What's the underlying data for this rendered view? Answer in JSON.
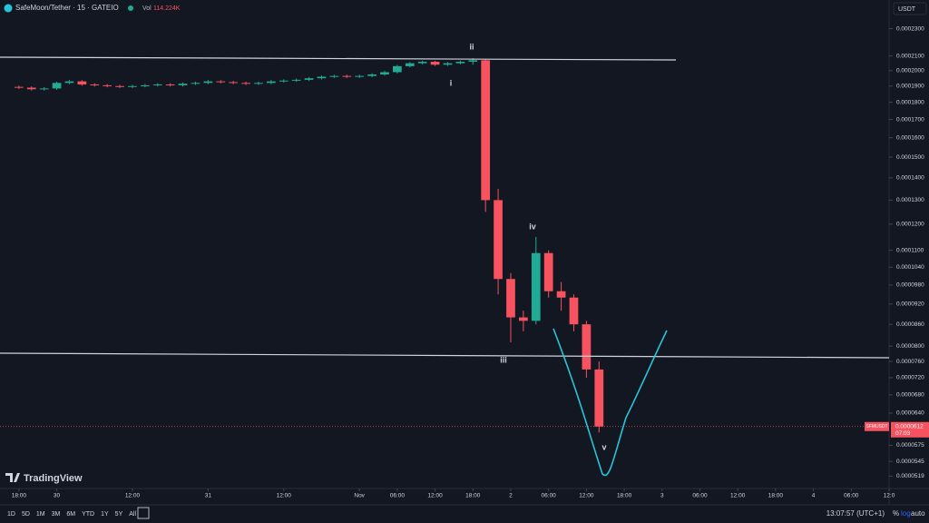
{
  "header": {
    "symbol": "SafeMoon/Tether · 15 · GATEIO",
    "vol_label": "Vol",
    "vol_value": "114.224K",
    "currency": "USDT",
    "logo": "TradingView"
  },
  "toolbar": {
    "ranges": [
      "1D",
      "5D",
      "1M",
      "3M",
      "6M",
      "YTD",
      "1Y",
      "5Y",
      "All"
    ],
    "clock": "13:07:57 (UTC+1)",
    "percent": "%",
    "log": "log",
    "auto": "auto"
  },
  "chart_data": {
    "type": "candlestick",
    "log_scale": true,
    "up_color": "#22ab94",
    "down_color": "#f7525f",
    "x": [
      0,
      2,
      4,
      6,
      8,
      10,
      12,
      14,
      16,
      18,
      20,
      22,
      24,
      26,
      28,
      30,
      32,
      34,
      36,
      38,
      40,
      42,
      44,
      46,
      48,
      50,
      52,
      54,
      56,
      58,
      60,
      62,
      64,
      66,
      68,
      70,
      72,
      74,
      76,
      78,
      80,
      82,
      84,
      86,
      88,
      90,
      92
    ],
    "open": [
      0.0001895,
      0.000189,
      0.000188,
      0.0001885,
      0.000192,
      0.000193,
      0.000191,
      0.0001905,
      0.00019,
      0.0001895,
      0.00019,
      0.0001905,
      0.000191,
      0.0001905,
      0.0001915,
      0.000192,
      0.000193,
      0.0001925,
      0.000192,
      0.0001915,
      0.000192,
      0.000193,
      0.0001935,
      0.000194,
      0.000195,
      0.000196,
      0.0001965,
      0.000196,
      0.0001965,
      0.0001975,
      0.000199,
      0.000203,
      0.000205,
      0.000206,
      0.000204,
      0.000205,
      0.000206,
      0.000207,
      0.00013,
      0.0001,
      8.8e-05,
      8.7e-05,
      0.000109,
      9.6e-05,
      9.4e-05,
      8.6e-05,
      7.4e-05
    ],
    "high": [
      0.0001903,
      0.0001898,
      0.0001893,
      0.0001928,
      0.0001938,
      0.0001938,
      0.0001918,
      0.0001913,
      0.0001908,
      0.0001908,
      0.0001913,
      0.0001918,
      0.0001918,
      0.0001923,
      0.0001928,
      0.0001938,
      0.0001938,
      0.0001933,
      0.0001928,
      0.0001928,
      0.0001938,
      0.0001943,
      0.0001948,
      0.0001958,
      0.0001968,
      0.0001973,
      0.0001973,
      0.0001973,
      0.0001983,
      0.0001998,
      0.0002038,
      0.0002058,
      0.0002068,
      0.0002068,
      0.0002058,
      0.0002068,
      0.0002085,
      0.000208,
      0.000135,
      0.000102,
      9e-05,
      0.000115,
      0.00011,
      9.9e-05,
      9.5e-05,
      8.7e-05,
      7.6e-05
    ],
    "low": [
      0.0001882,
      0.0001872,
      0.0001872,
      0.0001877,
      0.0001912,
      0.0001902,
      0.0001897,
      0.0001892,
      0.0001887,
      0.0001887,
      0.0001892,
      0.0001897,
      0.0001897,
      0.0001897,
      0.0001907,
      0.0001912,
      0.0001917,
      0.0001912,
      0.0001907,
      0.0001907,
      0.0001912,
      0.0001922,
      0.0001927,
      0.0001932,
      0.0001942,
      0.0001952,
      0.0001952,
      0.0001952,
      0.0001957,
      0.0001967,
      0.0001982,
      0.0002022,
      0.0002042,
      0.0002032,
      0.0002032,
      0.0002042,
      0.000204,
      0.000125,
      9.5e-05,
      8.1e-05,
      8.4e-05,
      8.6e-05,
      9.4e-05,
      9e-05,
      8.4e-05,
      7.2e-05,
      6e-05
    ],
    "close": [
      0.000189,
      0.000188,
      0.0001885,
      0.000192,
      0.000193,
      0.000191,
      0.0001905,
      0.00019,
      0.0001895,
      0.00019,
      0.0001905,
      0.000191,
      0.0001905,
      0.0001915,
      0.000192,
      0.000193,
      0.0001925,
      0.000192,
      0.0001915,
      0.000192,
      0.000193,
      0.0001935,
      0.000194,
      0.000195,
      0.000196,
      0.0001965,
      0.000196,
      0.0001965,
      0.0001975,
      0.000199,
      0.000203,
      0.000205,
      0.000206,
      0.000204,
      0.000205,
      0.000206,
      0.000207,
      0.00013,
      0.0001,
      8.8e-05,
      8.7e-05,
      0.000109,
      9.6e-05,
      9.4e-05,
      8.6e-05,
      7.4e-05,
      6.12e-05
    ],
    "xlim": [
      -3,
      138
    ],
    "xticks": [
      {
        "value": 0,
        "label": "18:00"
      },
      {
        "value": 6,
        "label": "30"
      },
      {
        "value": 18,
        "label": "12:00"
      },
      {
        "value": 30,
        "label": "31"
      },
      {
        "value": 42,
        "label": "12:00"
      },
      {
        "value": 54,
        "label": "Nov"
      },
      {
        "value": 60,
        "label": "06:00"
      },
      {
        "value": 66,
        "label": "12:00"
      },
      {
        "value": 72,
        "label": "18:00"
      },
      {
        "value": 78,
        "label": "2"
      },
      {
        "value": 84,
        "label": "06:00"
      },
      {
        "value": 90,
        "label": "12:00"
      },
      {
        "value": 96,
        "label": "18:00"
      },
      {
        "value": 102,
        "label": "3"
      },
      {
        "value": 108,
        "label": "06:00"
      },
      {
        "value": 114,
        "label": "12:00"
      },
      {
        "value": 120,
        "label": "18:00"
      },
      {
        "value": 126,
        "label": "4"
      },
      {
        "value": 132,
        "label": "06:00"
      },
      {
        "value": 138,
        "label": "12:0"
      }
    ],
    "ylim": [
      4.98e-05,
      0.000253
    ],
    "yticks": [
      {
        "value": 0.00023,
        "label": "0.0002300"
      },
      {
        "value": 0.00021,
        "label": "0.0002100"
      },
      {
        "value": 0.0002,
        "label": "0.0002000"
      },
      {
        "value": 0.00019,
        "label": "0.0001900"
      },
      {
        "value": 0.00018,
        "label": "0.0001800"
      },
      {
        "value": 0.00017,
        "label": "0.0001700"
      },
      {
        "value": 0.00016,
        "label": "0.0001600"
      },
      {
        "value": 0.00015,
        "label": "0.0001500"
      },
      {
        "value": 0.00014,
        "label": "0.0001400"
      },
      {
        "value": 0.00013,
        "label": "0.0001300"
      },
      {
        "value": 0.00012,
        "label": "0.0001200"
      },
      {
        "value": 0.00011,
        "label": "0.0001100"
      },
      {
        "value": 0.000104,
        "label": "0.0001040"
      },
      {
        "value": 9.8e-05,
        "label": "0.0000980"
      },
      {
        "value": 9.2e-05,
        "label": "0.0000920"
      },
      {
        "value": 8.6e-05,
        "label": "0.0000860"
      },
      {
        "value": 8e-05,
        "label": "0.0000800"
      },
      {
        "value": 7.6e-05,
        "label": "0.0000760"
      },
      {
        "value": 7.2e-05,
        "label": "0.0000720"
      },
      {
        "value": 6.8e-05,
        "label": "0.0000680"
      },
      {
        "value": 6.4e-05,
        "label": "0.0000640"
      },
      {
        "value": 5.75e-05,
        "label": "0.0000575"
      },
      {
        "value": 5.45e-05,
        "label": "0.0000545"
      },
      {
        "value": 5.19e-05,
        "label": "0.0000519"
      }
    ],
    "price_tag": {
      "symbol": "SFMUSDT",
      "value": 6.12e-05,
      "label": "0.0000612",
      "countdown": "07:03"
    },
    "annotations": [
      "i",
      "ii",
      "iii",
      "iv",
      "v"
    ]
  }
}
